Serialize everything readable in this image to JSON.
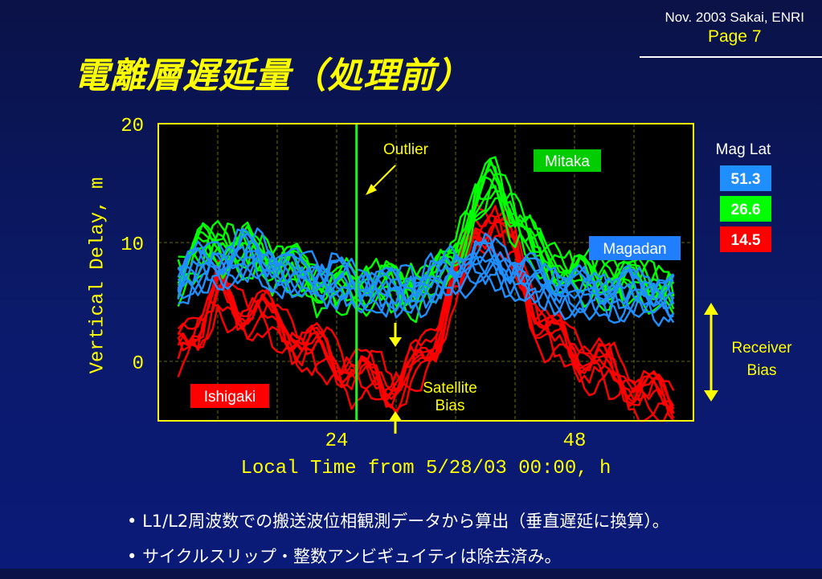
{
  "header": {
    "date": "Nov. 2003 Sakai, ENRI",
    "page": "Page 7"
  },
  "title": "電離層遅延量（処理前）",
  "bullets": [
    "L1/L2周波数での搬送波位相観測データから算出（垂直遅延に換算）。",
    "サイクルスリップ・整数アンビギュイティは除去済み。"
  ],
  "colors": {
    "bg": "#0b1a6a",
    "axis": "#ffff00",
    "mitaka": "#00ff00",
    "magadan": "#1f8fff",
    "ishigaki": "#ff0000"
  },
  "chart_data": {
    "type": "line",
    "title": "",
    "xlabel": "Local Time from 5/28/03 00:00, h",
    "ylabel": "Vertical Delay, m",
    "xlim": [
      6,
      60
    ],
    "ylim": [
      -5,
      20
    ],
    "xticks": [
      24,
      48
    ],
    "yticks": [
      0,
      10,
      20
    ],
    "grid": true,
    "outlier_line_x": 26,
    "legend": {
      "title": "Mag Lat",
      "entries": [
        {
          "label": "51.3",
          "color": "#1f8fff"
        },
        {
          "label": "26.6",
          "color": "#00ff00"
        },
        {
          "label": "14.5",
          "color": "#ff0000"
        }
      ]
    },
    "annotations": {
      "outlier": "Outlier",
      "mitaka": "Mitaka",
      "magadan": "Magadan",
      "ishigaki": "Ishigaki",
      "satellite_bias": [
        "Satellite",
        "Bias"
      ],
      "receiver_bias": [
        "Receiver",
        "Bias"
      ]
    },
    "series": [
      {
        "name": "Mitaka",
        "color": "#00ff00",
        "x": [
          8,
          10,
          12,
          14,
          16,
          18,
          20,
          22,
          24,
          26,
          28,
          30,
          32,
          34,
          36,
          38,
          40,
          42,
          44,
          46,
          48,
          50,
          52,
          54,
          56,
          58
        ],
        "y": [
          7,
          8.5,
          10,
          9,
          9,
          8,
          7.5,
          6.5,
          6,
          6,
          6.5,
          6,
          6,
          6.5,
          9,
          13,
          15,
          12,
          9,
          8,
          7,
          7,
          6.5,
          6.5,
          6.5,
          5.5
        ]
      },
      {
        "name": "Magadan",
        "color": "#1f8fff",
        "x": [
          8,
          10,
          12,
          14,
          16,
          18,
          20,
          22,
          24,
          26,
          28,
          30,
          32,
          34,
          36,
          38,
          40,
          42,
          44,
          46,
          48,
          50,
          52,
          54,
          56,
          58
        ],
        "y": [
          6,
          7,
          7.5,
          8,
          8,
          7,
          6.5,
          6.5,
          6,
          5.5,
          5.5,
          5,
          5.5,
          6,
          7,
          7.5,
          7.5,
          6.5,
          6,
          5.5,
          5,
          5,
          5,
          5,
          5,
          4.5
        ]
      },
      {
        "name": "Ishigaki",
        "color": "#ff0000",
        "x": [
          8,
          10,
          12,
          14,
          16,
          18,
          20,
          22,
          24,
          26,
          28,
          30,
          32,
          34,
          36,
          38,
          40,
          42,
          44,
          46,
          48,
          50,
          52,
          54,
          56,
          58
        ],
        "y": [
          1,
          3,
          6,
          4,
          5,
          3,
          2,
          1,
          0,
          -1,
          -1.5,
          -2,
          -0.5,
          2,
          7,
          11,
          12,
          9,
          4,
          2,
          1,
          0,
          -1,
          -2,
          -3,
          -3.5
        ]
      }
    ]
  }
}
